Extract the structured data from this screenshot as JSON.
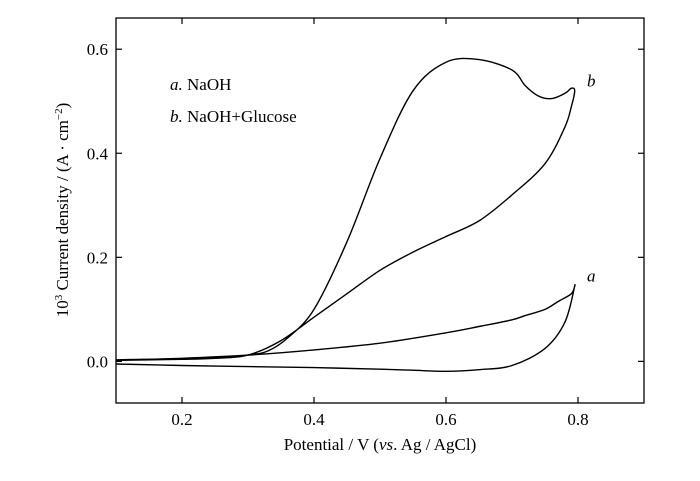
{
  "chart_data": {
    "type": "line",
    "xlabel_parts": [
      "Potential / V (",
      "vs",
      ". Ag / AgCl)"
    ],
    "ylabel_parts": [
      "10",
      "3",
      " Current density / (A · cm",
      "−2",
      ")"
    ],
    "xlim": [
      0.1,
      0.9
    ],
    "ylim": [
      -0.08,
      0.66
    ],
    "xticks": [
      0.2,
      0.4,
      0.6,
      0.8
    ],
    "xtick_labels": [
      "0.2",
      "0.4",
      "0.6",
      "0.8"
    ],
    "yticks": [
      0.0,
      0.2,
      0.4,
      0.6
    ],
    "ytick_labels": [
      "0.0",
      "0.2",
      "0.4",
      "0.6"
    ],
    "grid": false,
    "legend": {
      "placement": "top-left",
      "entries": [
        {
          "key": "a.",
          "text": " NaOH"
        },
        {
          "key": "b.",
          "text": " NaOH+Glucose"
        }
      ]
    },
    "series": [
      {
        "label": "a",
        "x": [
          0.1,
          0.2,
          0.3,
          0.4,
          0.5,
          0.55,
          0.6,
          0.65,
          0.7,
          0.75,
          0.78,
          0.795,
          0.79,
          0.77,
          0.75,
          0.72,
          0.7,
          0.65,
          0.6,
          0.5,
          0.4,
          0.3,
          0.2,
          0.1
        ],
        "y": [
          -0.005,
          -0.008,
          -0.01,
          -0.012,
          -0.015,
          -0.017,
          -0.019,
          -0.016,
          -0.008,
          0.025,
          0.075,
          0.145,
          0.13,
          0.115,
          0.1,
          0.088,
          0.08,
          0.067,
          0.055,
          0.035,
          0.022,
          0.012,
          0.006,
          0.002
        ]
      },
      {
        "label": "b",
        "x": [
          0.1,
          0.2,
          0.25,
          0.3,
          0.33,
          0.36,
          0.4,
          0.45,
          0.5,
          0.55,
          0.6,
          0.65,
          0.7,
          0.72,
          0.74,
          0.76,
          0.78,
          0.79,
          0.795,
          0.79,
          0.78,
          0.75,
          0.7,
          0.65,
          0.6,
          0.55,
          0.5,
          0.45,
          0.4,
          0.35,
          0.3,
          0.25,
          0.2,
          0.1
        ],
        "y": [
          0.003,
          0.005,
          0.007,
          0.012,
          0.02,
          0.045,
          0.1,
          0.23,
          0.39,
          0.52,
          0.575,
          0.58,
          0.56,
          0.53,
          0.51,
          0.505,
          0.515,
          0.525,
          0.52,
          0.49,
          0.45,
          0.38,
          0.32,
          0.27,
          0.24,
          0.21,
          0.175,
          0.13,
          0.085,
          0.04,
          0.012,
          0.006,
          0.004,
          0.002
        ]
      }
    ],
    "annotations": [
      {
        "text": "a",
        "x": 0.82,
        "y": 0.165
      },
      {
        "text": "b",
        "x": 0.82,
        "y": 0.54
      }
    ]
  }
}
